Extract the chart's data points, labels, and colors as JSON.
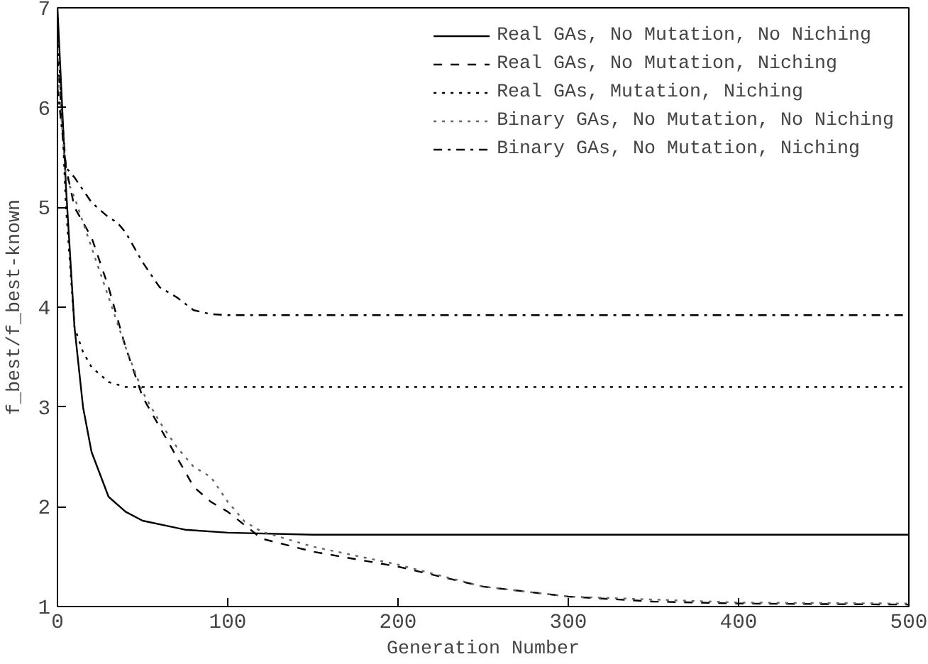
{
  "chart_data": {
    "type": "line",
    "xlabel": "Generation Number",
    "ylabel": "f_best/f_best-known",
    "xlim": [
      0,
      500
    ],
    "ylim": [
      1,
      7
    ],
    "xticks": [
      0,
      100,
      200,
      300,
      400,
      500
    ],
    "yticks": [
      1,
      2,
      3,
      4,
      5,
      6,
      7
    ],
    "grid": false,
    "legend": "top right",
    "marker": "none",
    "series": [
      {
        "name": "Real GAs, No Mutation, No Niching",
        "color": "#000000",
        "line_style": "solid",
        "x": [
          0,
          5,
          10,
          15,
          20,
          30,
          40,
          50,
          75,
          100,
          150,
          500
        ],
        "values": [
          7.0,
          5.2,
          3.8,
          3.0,
          2.55,
          2.1,
          1.95,
          1.86,
          1.77,
          1.74,
          1.72,
          1.72
        ]
      },
      {
        "name": "Real GAs, No Mutation, Niching",
        "color": "#000000",
        "line_style": "dashed",
        "x": [
          0,
          5,
          10,
          20,
          30,
          40,
          50,
          60,
          70,
          80,
          90,
          100,
          120,
          150,
          200,
          250,
          300,
          350,
          400,
          500
        ],
        "values": [
          6.5,
          5.4,
          5.0,
          4.7,
          4.2,
          3.6,
          3.1,
          2.8,
          2.5,
          2.2,
          2.05,
          1.95,
          1.68,
          1.55,
          1.4,
          1.2,
          1.1,
          1.05,
          1.03,
          1.02
        ]
      },
      {
        "name": "Real GAs, Mutation, Niching",
        "color": "#000000",
        "line_style": "dotted",
        "x": [
          0,
          3,
          5,
          10,
          15,
          20,
          30,
          40,
          60,
          500
        ],
        "values": [
          6.8,
          5.8,
          5.0,
          3.8,
          3.55,
          3.4,
          3.25,
          3.2,
          3.2,
          3.2
        ]
      },
      {
        "name": "Binary GAs, No Mutation, No Niching",
        "color": "#666666",
        "line_style": "dotted",
        "x": [
          0,
          5,
          10,
          20,
          30,
          40,
          50,
          60,
          70,
          80,
          90,
          100,
          110,
          120,
          150,
          200,
          250,
          300,
          400,
          500
        ],
        "values": [
          6.4,
          5.3,
          5.1,
          4.6,
          4.1,
          3.6,
          3.15,
          2.85,
          2.6,
          2.4,
          2.3,
          2.05,
          1.85,
          1.75,
          1.6,
          1.42,
          1.2,
          1.1,
          1.04,
          1.03
        ]
      },
      {
        "name": "Binary GAs, No Mutation, Niching",
        "color": "#000000",
        "line_style": "dashdot",
        "x": [
          0,
          5,
          10,
          20,
          30,
          35,
          40,
          50,
          60,
          70,
          80,
          90,
          100,
          500
        ],
        "values": [
          6.2,
          5.4,
          5.3,
          5.05,
          4.9,
          4.85,
          4.75,
          4.45,
          4.2,
          4.1,
          3.97,
          3.93,
          3.92,
          3.92
        ]
      }
    ]
  }
}
